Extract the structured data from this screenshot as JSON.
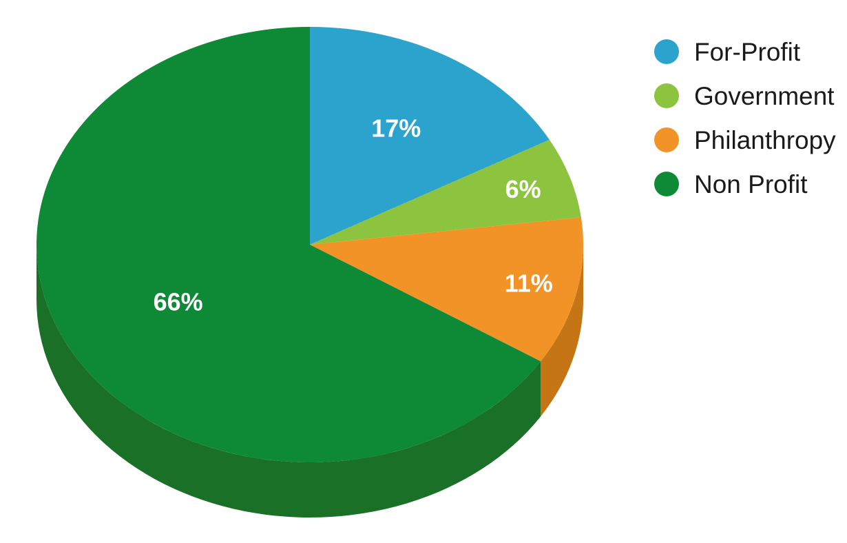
{
  "chart_data": {
    "type": "pie",
    "style": "3d",
    "legend_position": "right",
    "slices": [
      {
        "label": "For-Profit",
        "value": 17,
        "display": "17%",
        "color": "#2ba3cd",
        "side_color": "#1f7fa3"
      },
      {
        "label": "Government",
        "value": 6,
        "display": "6%",
        "color": "#8dc43f",
        "side_color": "#6f9c2e"
      },
      {
        "label": "Philanthropy",
        "value": 11,
        "display": "11%",
        "color": "#f19327",
        "side_color": "#c67514"
      },
      {
        "label": "Non Profit",
        "value": 66,
        "display": "66%",
        "color": "#0e8a37",
        "side_color": "#1b7028"
      }
    ]
  }
}
